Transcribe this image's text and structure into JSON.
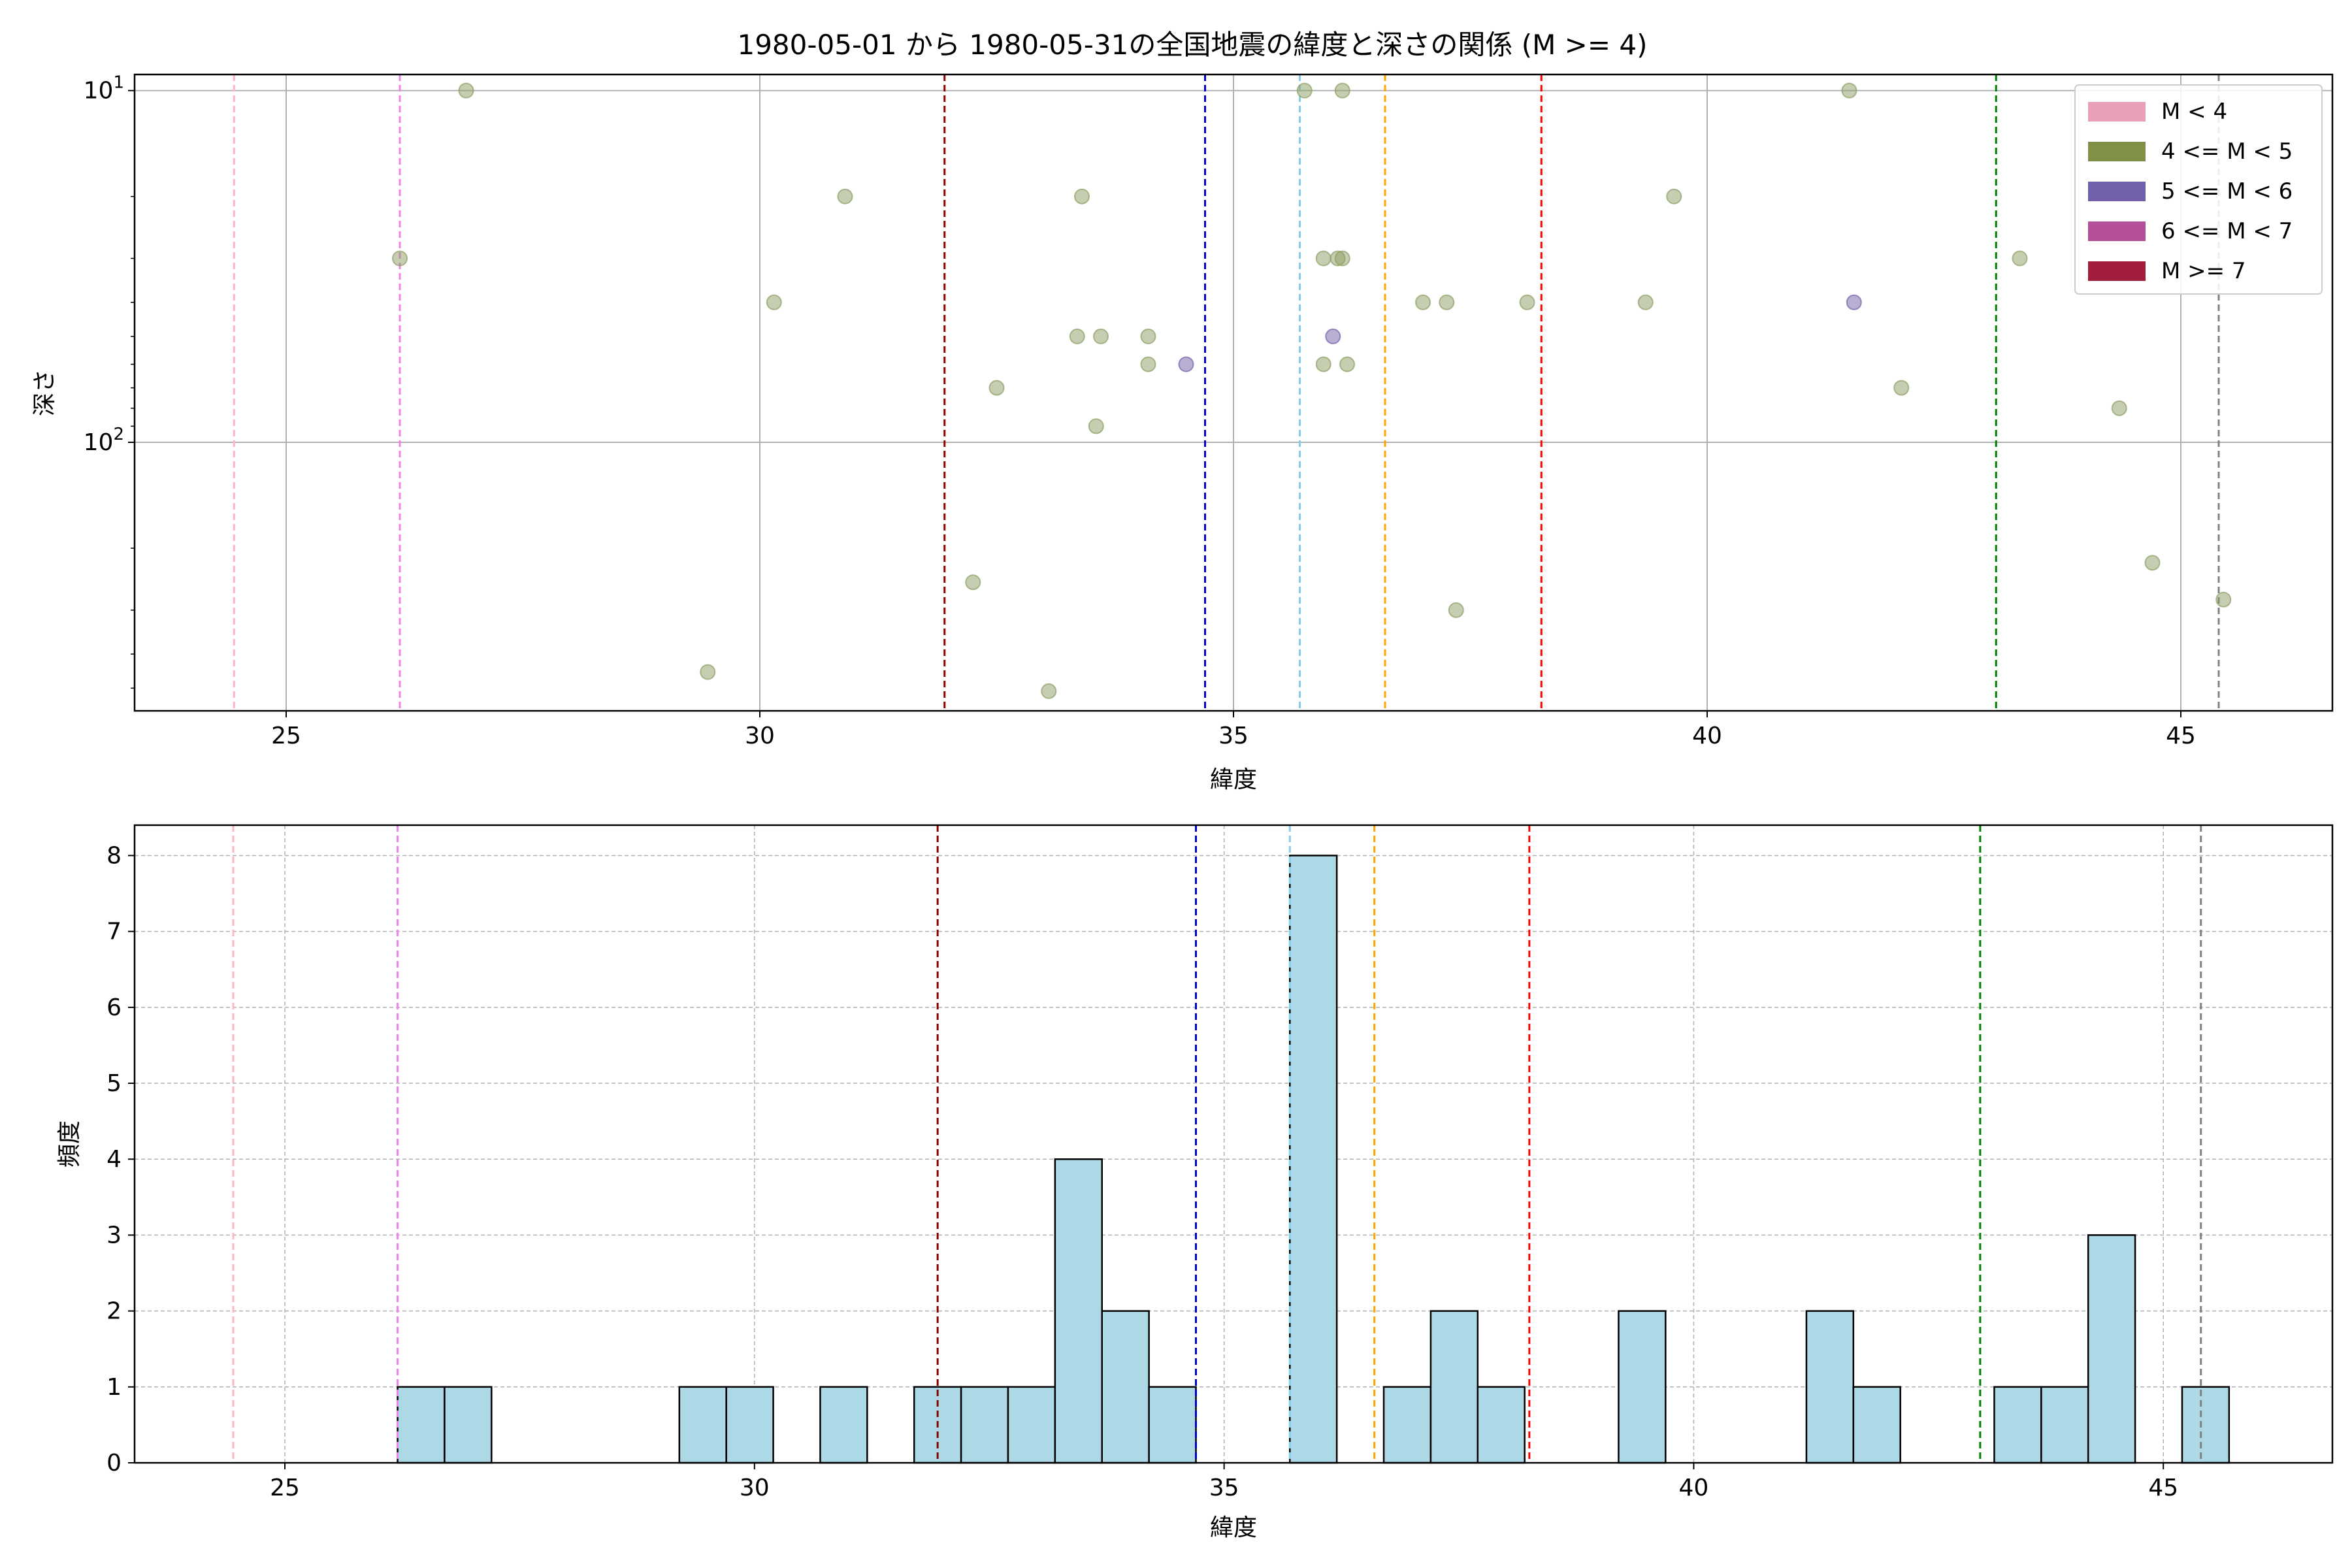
{
  "title": "1980-05-01 から 1980-05-31の全国地震の緯度と深さの関係 (M >= 4)",
  "chart_data": [
    {
      "type": "scatter",
      "xlabel": "緯度",
      "ylabel": "深さ",
      "xlim": [
        23.4,
        46.6
      ],
      "ylim": [
        580,
        9.0
      ],
      "yscale": "log",
      "y_inverted": true,
      "xticks": [
        25,
        30,
        35,
        40,
        45
      ],
      "yticks": [
        {
          "value": 10,
          "base": "10",
          "exp": "1"
        },
        {
          "value": 100,
          "base": "10",
          "exp": "2"
        }
      ],
      "grid": true,
      "legend_position": "top-right",
      "legend": [
        {
          "label": "M < 4",
          "color": "#e8a0b8"
        },
        {
          "label": "4 <= M < 5",
          "color": "#7f9048"
        },
        {
          "label": "5 <= M < 6",
          "color": "#7260a8"
        },
        {
          "label": "6 <= M < 7",
          "color": "#b4509a"
        },
        {
          "label": "M >= 7",
          "color": "#a01e3c"
        }
      ],
      "vlines": [
        {
          "x": 24.45,
          "color": "#ffb6c1"
        },
        {
          "x": 26.2,
          "color": "#ee82ee"
        },
        {
          "x": 31.95,
          "color": "#8b0000"
        },
        {
          "x": 34.7,
          "color": "#0000cd"
        },
        {
          "x": 35.7,
          "color": "#87ceeb"
        },
        {
          "x": 36.6,
          "color": "#ffa500"
        },
        {
          "x": 38.25,
          "color": "#ff0000"
        },
        {
          "x": 43.05,
          "color": "#008000"
        },
        {
          "x": 45.4,
          "color": "#808080"
        }
      ],
      "series": [
        {
          "color": "#8c9e64",
          "x": [
            26.9,
            26.2,
            30.9,
            30.15,
            29.45,
            33.4,
            33.35,
            33.6,
            33.55,
            32.5,
            32.25,
            33.05,
            34.1,
            34.1,
            35.75,
            36.15,
            35.95,
            36.1,
            36.15,
            35.95,
            36.2,
            37.0,
            37.25,
            38.1,
            37.35,
            39.65,
            39.35,
            41.5,
            42.05,
            43.3,
            44.35,
            44.7,
            45.45
          ],
          "y": [
            10,
            30,
            20,
            40,
            450,
            20,
            50,
            50,
            90,
            70,
            250,
            510,
            50,
            60,
            10,
            10,
            30,
            30,
            30,
            60,
            60,
            40,
            40,
            40,
            300,
            20,
            40,
            10,
            70,
            30,
            80,
            220,
            280
          ]
        },
        {
          "color": "#7260a8",
          "x": [
            34.5,
            36.05,
            41.55
          ],
          "y": [
            60,
            50,
            40
          ]
        }
      ]
    },
    {
      "type": "bar",
      "xlabel": "緯度",
      "ylabel": "頻度",
      "xlim": [
        23.4,
        46.8
      ],
      "ylim": [
        0,
        8.4
      ],
      "xticks": [
        25,
        30,
        35,
        40,
        45
      ],
      "yticks": [
        0,
        1,
        2,
        3,
        4,
        5,
        6,
        7,
        8
      ],
      "grid": true,
      "bin_width": 0.5,
      "bar_color": "#add8e6",
      "bin_starts": [
        26.2,
        26.7,
        29.2,
        29.7,
        30.7,
        31.7,
        32.2,
        32.7,
        33.2,
        33.7,
        34.2,
        35.7,
        36.7,
        37.2,
        37.7,
        39.2,
        41.2,
        41.7,
        43.2,
        43.7,
        44.2,
        45.2
      ],
      "values": [
        1,
        1,
        1,
        1,
        1,
        1,
        1,
        1,
        4,
        2,
        1,
        8,
        1,
        2,
        1,
        2,
        2,
        1,
        1,
        1,
        3,
        1
      ],
      "vlines": [
        {
          "x": 24.45,
          "color": "#ffb6c1"
        },
        {
          "x": 26.2,
          "color": "#ee82ee"
        },
        {
          "x": 31.95,
          "color": "#8b0000"
        },
        {
          "x": 34.7,
          "color": "#0000cd"
        },
        {
          "x": 35.7,
          "color": "#87ceeb"
        },
        {
          "x": 36.6,
          "color": "#ffa500"
        },
        {
          "x": 38.25,
          "color": "#ff0000"
        },
        {
          "x": 43.05,
          "color": "#008000"
        },
        {
          "x": 45.4,
          "color": "#808080"
        }
      ]
    }
  ]
}
